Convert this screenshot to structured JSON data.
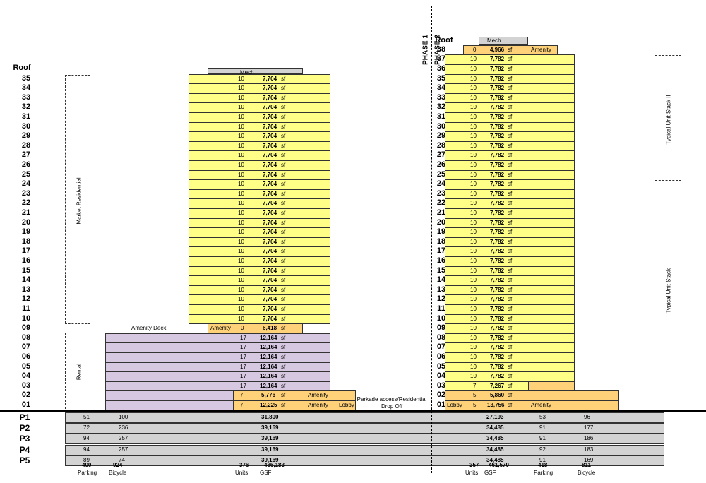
{
  "phase_labels": {
    "p1": "PHASE 1",
    "p2": "PHASE 2"
  },
  "left_tower": {
    "roof_label": "Roof",
    "mech_label": "Mech",
    "typical": {
      "floors_from": 35,
      "floors_to": 10,
      "units": "10",
      "area": "7,704",
      "unit": "sf"
    },
    "amenity_floor": {
      "floor": "09",
      "name": "Amenity",
      "units": "0",
      "area": "6,418",
      "unit": "sf"
    },
    "amenity_deck": "Amenity Deck",
    "podium": {
      "floors": [
        "08",
        "07",
        "06",
        "05",
        "04",
        "03"
      ],
      "units": "17",
      "area": "12,164",
      "unit": "sf"
    },
    "floor02": {
      "floor": "02",
      "units": "7",
      "area": "5,776",
      "unit": "sf",
      "tag": "Amenity"
    },
    "floor01": {
      "floor": "01",
      "units": "7",
      "area": "12,225",
      "unit": "sf",
      "tag": "Amenity",
      "tag2": "Lobby"
    },
    "zone_market": "Market Residential",
    "zone_rental": "Rental"
  },
  "right_tower": {
    "roof_label": "Roof",
    "mech_label": "Mech",
    "top_floor": {
      "floor": "38",
      "units": "0",
      "area": "4,966",
      "unit": "sf",
      "tag": "Amenity"
    },
    "typical": {
      "floors_from": 37,
      "floors_to": 4,
      "units": "10",
      "area": "7,782",
      "unit": "sf"
    },
    "floor03": {
      "floor": "03",
      "units": "7",
      "area": "7,267",
      "unit": "sf"
    },
    "floor02": {
      "floor": "02",
      "units": "5",
      "area": "5,860",
      "unit": "sf"
    },
    "floor01": {
      "floor": "01",
      "units": "5",
      "area": "13,756",
      "unit": "sf",
      "tag": "Amenity",
      "tag2": "Lobby"
    },
    "zone_stack2": "Typical Unit Stack II",
    "zone_stack1": "Typical Unit Stack I"
  },
  "parkade_note": {
    "line1": "Parkade access/Residential",
    "line2": "Drop Off"
  },
  "parking_levels": [
    {
      "level": "P1",
      "l_parking": "51",
      "l_bicycle": "100",
      "l_gsf": "31,800",
      "r_gsf": "27,193",
      "r_parking": "53",
      "r_bicycle": "96"
    },
    {
      "level": "P2",
      "l_parking": "72",
      "l_bicycle": "236",
      "l_gsf": "39,169",
      "r_gsf": "34,485",
      "r_parking": "91",
      "r_bicycle": "177"
    },
    {
      "level": "P3",
      "l_parking": "94",
      "l_bicycle": "257",
      "l_gsf": "39,169",
      "r_gsf": "34,485",
      "r_parking": "91",
      "r_bicycle": "186"
    },
    {
      "level": "P4",
      "l_parking": "94",
      "l_bicycle": "257",
      "l_gsf": "39,169",
      "r_gsf": "34,485",
      "r_parking": "92",
      "r_bicycle": "183"
    },
    {
      "level": "P5",
      "l_parking": "89",
      "l_bicycle": "74",
      "l_gsf": "39,169",
      "r_gsf": "34,485",
      "r_parking": "91",
      "r_bicycle": "169"
    }
  ],
  "totals": {
    "l_parking": "400",
    "l_bicycle": "924",
    "l_units": "376",
    "l_gsf": "486,183",
    "r_units": "357",
    "r_gsf": "461,570",
    "r_parking": "418",
    "r_bicycle": "811",
    "lbl_parking": "Parking",
    "lbl_bicycle": "Bicycle",
    "lbl_units": "Units",
    "lbl_gsf": "GSF"
  }
}
